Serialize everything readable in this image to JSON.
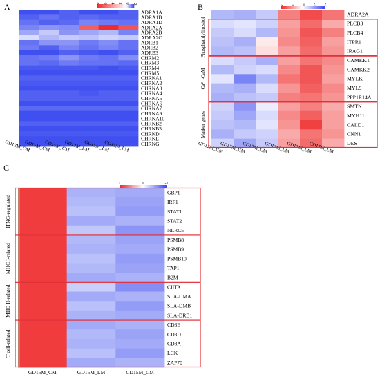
{
  "colors": {
    "low": "#3f4ff0",
    "mid": "#ffffff",
    "high": "#ef2b2b",
    "box": "#e0303a"
  },
  "chart_data": [
    {
      "type": "heatmap",
      "panel": "A",
      "legend_ticks": [
        "8",
        "6",
        "4",
        "2",
        "0",
        "-2"
      ],
      "columns": [
        "GD12M_CM",
        "GD15M_CM",
        "CD15M_CM",
        "GD12M_LM",
        "GD15M_LM",
        "CD15M_LM"
      ],
      "rows": [
        "ADRA1A",
        "ADRA1B",
        "ADRA1D",
        "ADRA2A",
        "ADRA2B",
        "ADRA2C",
        "ADRB1",
        "ADRB2",
        "ADRB3",
        "CHRM2",
        "CHRM3",
        "CHRM4",
        "CHRM5",
        "CHRNA1",
        "CHRNA2",
        "CHRNA3",
        "CHRNA4",
        "CHRNA5",
        "CHRNA6",
        "CHRNA7",
        "CHRNA9",
        "CHRNA10",
        "CHRNB2",
        "CHRNB3",
        "CHRND",
        "CHRNE",
        "CHRNG"
      ],
      "values": [
        [
          -2,
          -2,
          -1.8,
          -2,
          -2,
          -1.8
        ],
        [
          -1.8,
          -1.6,
          -1.8,
          -1.7,
          -1.8,
          -1.8
        ],
        [
          -1.6,
          -1.8,
          -1.7,
          -1.4,
          -1.5,
          -1.6
        ],
        [
          -1.4,
          -1.2,
          -1.3,
          6,
          8,
          6.5
        ],
        [
          -1,
          -0.6,
          -1.2,
          -1,
          -0.8,
          -1.4
        ],
        [
          -0.4,
          -0.8,
          -0.6,
          -0.7,
          -0.5,
          -0.6
        ],
        [
          -1.6,
          -1.2,
          -1.2,
          -1.5,
          -1.3,
          -1.6
        ],
        [
          -1.5,
          -1.8,
          -1.4,
          -1.6,
          -1.4,
          -1.6
        ],
        [
          -2,
          -2,
          -1.8,
          -1.9,
          -2,
          -1.8
        ],
        [
          -1.6,
          -1.5,
          -1.2,
          -1.5,
          -1.6,
          -1.3
        ],
        [
          -1.6,
          -1.7,
          -1.5,
          -1.6,
          -1.6,
          -1.7
        ],
        [
          -1.9,
          -1.9,
          -1.9,
          -1.9,
          -2,
          -1.9
        ],
        [
          -2,
          -2,
          -2,
          -2,
          -2,
          -2
        ],
        [
          -1.8,
          -1.8,
          -1.8,
          -1.8,
          -1.8,
          -1.8
        ],
        [
          -1.9,
          -1.9,
          -1.9,
          -1.9,
          -1.9,
          -1.9
        ],
        [
          -2,
          -2,
          -2,
          -2,
          -2,
          -2
        ],
        [
          -1.8,
          -1.8,
          -1.8,
          -1.9,
          -1.8,
          -1.8
        ],
        [
          -1.8,
          -1.8,
          -1.8,
          -1.8,
          -1.8,
          -1.8
        ],
        [
          -2,
          -2,
          -2,
          -2,
          -2,
          -2
        ],
        [
          -1.7,
          -1.7,
          -1.7,
          -1.7,
          -1.7,
          -1.7
        ],
        [
          -2,
          -2,
          -2,
          -2,
          -2,
          -2
        ],
        [
          -2,
          -2,
          -2,
          -2,
          -2,
          -2
        ],
        [
          -1.8,
          -1.8,
          -1.8,
          -1.8,
          -1.8,
          -1.8
        ],
        [
          -2,
          -2,
          -2,
          -2,
          -2,
          -2
        ],
        [
          -1.9,
          -1.9,
          -1.9,
          -1.9,
          -1.9,
          -1.9
        ],
        [
          -2,
          -2,
          -2,
          -2,
          -2,
          -2
        ],
        [
          -2,
          -2,
          -2,
          -2,
          -2,
          -2
        ]
      ]
    },
    {
      "type": "heatmap",
      "panel": "B",
      "legend_ticks": [
        "2",
        "1",
        "0",
        "-1",
        "-2"
      ],
      "columns": [
        "GD12M_CM",
        "GD15M_CM",
        "CD15M_CM",
        "GD12M_LM",
        "GD15M_LM",
        "CD15M_LM"
      ],
      "rows": [
        "ADRA2A",
        "PLCB3",
        "PLCB4",
        "ITPR1",
        "IRAG1",
        "CAMKK1",
        "CAMKK2",
        "MYLK",
        "MYL9",
        "PPP1R14A",
        "SMTN",
        "MYH11",
        "CALD1",
        "CNN1",
        "DES"
      ],
      "groups": [
        {
          "label": "Phosphatidylinositol",
          "start": 1,
          "end": 4
        },
        {
          "label": "Ca²⁺-CaM",
          "start": 5,
          "end": 9
        },
        {
          "label": "Marker genes",
          "start": 10,
          "end": 14
        }
      ],
      "values": [
        [
          -0.8,
          -0.9,
          -0.6,
          1.2,
          1.7,
          1.3
        ],
        [
          -0.4,
          -0.3,
          -0.5,
          0.9,
          1.4,
          0.8
        ],
        [
          -0.6,
          -0.4,
          -0.8,
          1.0,
          1.6,
          1.2
        ],
        [
          -0.7,
          -0.9,
          0.2,
          1.1,
          1.5,
          0.9
        ],
        [
          -0.8,
          -0.7,
          0.3,
          0.9,
          1.4,
          1.0
        ],
        [
          -0.4,
          -0.6,
          -0.9,
          0.9,
          1.3,
          1.1
        ],
        [
          -0.8,
          -0.5,
          -0.4,
          1.1,
          1.6,
          1.0
        ],
        [
          -0.3,
          -1.4,
          -0.8,
          1.3,
          1.6,
          0.9
        ],
        [
          -0.8,
          -0.9,
          -0.4,
          1.0,
          1.5,
          1.1
        ],
        [
          -0.9,
          -0.7,
          -0.6,
          1.2,
          1.3,
          1.0
        ],
        [
          -0.5,
          -1.2,
          -0.2,
          0.9,
          1.2,
          0.8
        ],
        [
          -0.6,
          -1.0,
          -0.4,
          1.1,
          1.5,
          0.9
        ],
        [
          -0.7,
          -0.8,
          -0.3,
          1.0,
          1.8,
          0.9
        ],
        [
          -0.9,
          -0.6,
          -0.5,
          0.8,
          1.3,
          1.0
        ],
        [
          -0.5,
          -1.0,
          -0.6,
          0.9,
          1.4,
          0.8
        ]
      ]
    },
    {
      "type": "heatmap",
      "panel": "C",
      "legend_ticks": [
        "1",
        "0",
        "-1"
      ],
      "columns": [
        "GD15M_CM",
        "GD15M_LM",
        "CD15M_CM"
      ],
      "rows": [
        "GBP1",
        "IRF1",
        "STAT1",
        "STAT2",
        "NLRC5",
        "PSMB8",
        "PSMB9",
        "PSMB10",
        "TAP1",
        "B2M",
        "CIITA",
        "SLA-DMA",
        "SLA-DMB",
        "SLA-DRB1",
        "CD3E",
        "CD3D",
        "CD8A",
        "LCK",
        "ZAP70"
      ],
      "groups": [
        {
          "label": "IFNG-regulated",
          "start": 0,
          "end": 4
        },
        {
          "label": "MHC I-related",
          "start": 5,
          "end": 9
        },
        {
          "label": "MHC II-related",
          "start": 10,
          "end": 13
        },
        {
          "label": "T cell-related",
          "start": 14,
          "end": 18
        }
      ],
      "values": [
        [
          1.15,
          -0.55,
          -0.6
        ],
        [
          1.15,
          -0.5,
          -0.65
        ],
        [
          1.15,
          -0.45,
          -0.7
        ],
        [
          1.15,
          -0.6,
          -0.55
        ],
        [
          1.15,
          -0.4,
          -0.75
        ],
        [
          1.15,
          -0.5,
          -0.65
        ],
        [
          1.15,
          -0.55,
          -0.6
        ],
        [
          1.15,
          -0.45,
          -0.7
        ],
        [
          1.15,
          -0.5,
          -0.65
        ],
        [
          1.15,
          -0.6,
          -0.55
        ],
        [
          1.15,
          -0.35,
          -0.8
        ],
        [
          1.15,
          -0.6,
          -0.55
        ],
        [
          1.15,
          -0.45,
          -0.7
        ],
        [
          1.15,
          -0.55,
          -0.6
        ],
        [
          1.15,
          -0.6,
          -0.55
        ],
        [
          1.15,
          -0.5,
          -0.65
        ],
        [
          1.15,
          -0.55,
          -0.6
        ],
        [
          1.15,
          -0.45,
          -0.7
        ],
        [
          1.15,
          -0.6,
          -0.55
        ]
      ]
    }
  ]
}
